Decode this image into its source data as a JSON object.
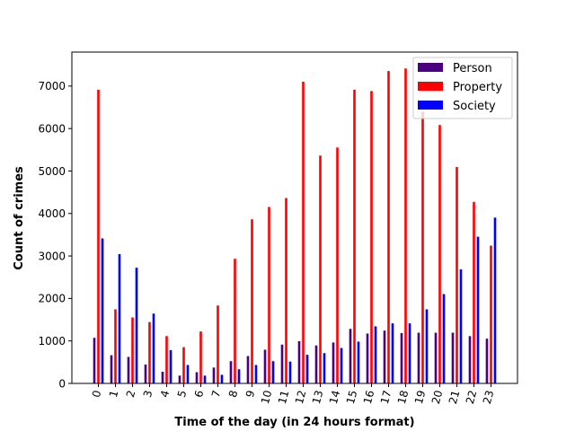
{
  "chart_data": {
    "type": "bar",
    "title": "",
    "xlabel": "Time of the day (in 24 hours format)",
    "ylabel": "Count of crimes",
    "categories": [
      "0",
      "1",
      "2",
      "3",
      "4",
      "5",
      "6",
      "7",
      "8",
      "9",
      "10",
      "11",
      "12",
      "13",
      "14",
      "15",
      "16",
      "17",
      "18",
      "19",
      "20",
      "21",
      "22",
      "23"
    ],
    "ylim": [
      0,
      7800
    ],
    "yticks": [
      0,
      1000,
      2000,
      3000,
      4000,
      5000,
      6000,
      7000
    ],
    "legend_position": "top-right",
    "grid": false,
    "series": [
      {
        "name": "Person",
        "color": "#4b0082",
        "values": [
          1080,
          670,
          630,
          450,
          280,
          190,
          270,
          380,
          530,
          650,
          800,
          920,
          1000,
          900,
          970,
          1290,
          1180,
          1250,
          1190,
          1200,
          1200,
          1200,
          1120,
          1060
        ]
      },
      {
        "name": "Property",
        "color": "#ff0000",
        "values": [
          6920,
          1750,
          1560,
          1450,
          1120,
          860,
          1230,
          1840,
          2940,
          3870,
          4160,
          4370,
          7110,
          5370,
          5560,
          6920,
          6890,
          7360,
          7420,
          6400,
          6090,
          5100,
          4280,
          3250
        ]
      },
      {
        "name": "Society",
        "color": "#0000ff",
        "values": [
          3420,
          3050,
          2730,
          1650,
          790,
          440,
          190,
          210,
          340,
          440,
          530,
          520,
          680,
          720,
          840,
          990,
          1350,
          1420,
          1420,
          1750,
          2110,
          2690,
          3460,
          3910
        ]
      }
    ]
  }
}
